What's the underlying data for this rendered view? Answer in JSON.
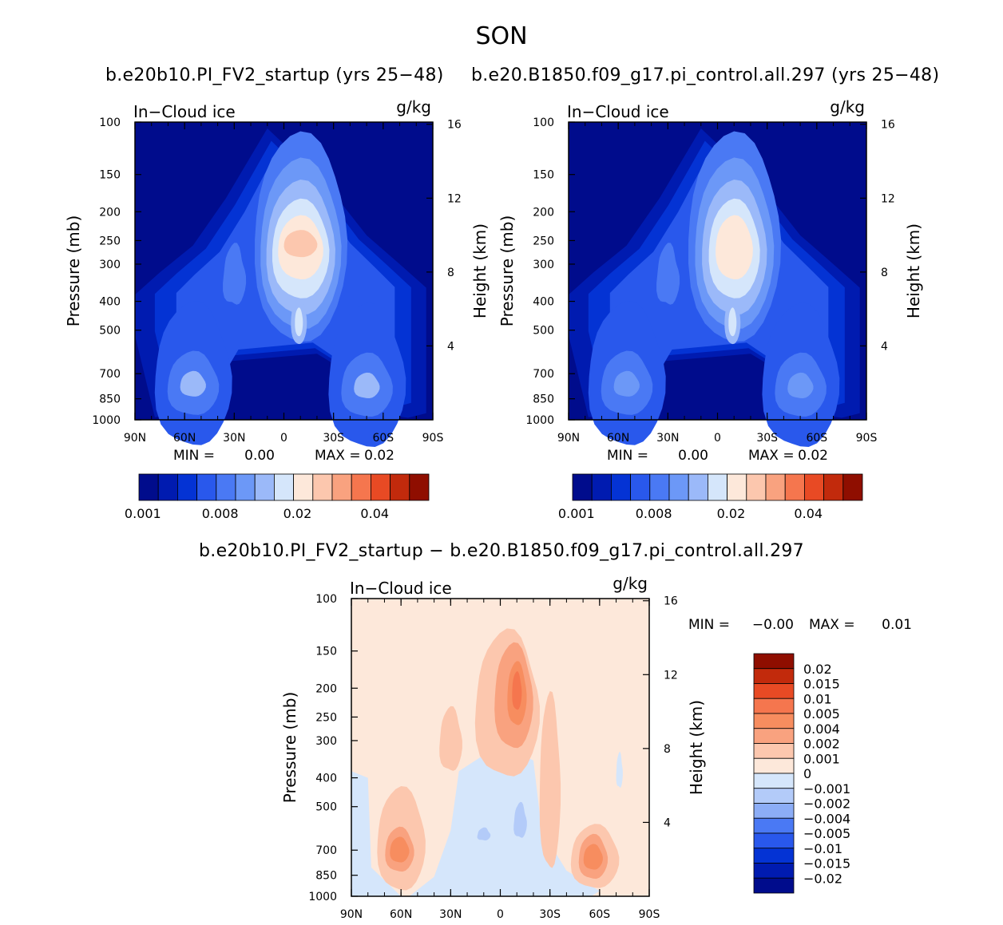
{
  "figure_title": "SON",
  "top_left_case": "b.e20b10.PI_FV2_startup (yrs 25−48)",
  "top_right_case": "b.e20.B1850.f09_g17.pi_control.all.297 (yrs 25−48)",
  "bottom_title": "b.e20b10.PI_FV2_startup − b.e20.B1850.f09_g17.pi_control.all.297",
  "chart_data": [
    {
      "type": "heatmap",
      "panel": "case1",
      "title_left": "In−Cloud ice",
      "title_right": "g/kg",
      "xlabel": "",
      "ylabel": "Pressure (mb)",
      "ylabel_right": "Height (km)",
      "x_ticks": [
        "90N",
        "60N",
        "30N",
        "0",
        "30S",
        "60S",
        "90S"
      ],
      "y_ticks": [
        100,
        150,
        200,
        250,
        300,
        400,
        500,
        700,
        850,
        1000
      ],
      "y_ticks_right": [
        4,
        8,
        12,
        16
      ],
      "ylim": [
        1000,
        100
      ],
      "min_label": "MIN =",
      "min_value": "0.00",
      "max_label": "MAX =",
      "max_value": "0.02",
      "colorbar_labels": [
        "0.001",
        "0.008",
        "0.02",
        "0.04"
      ],
      "features": [
        {
          "lat": -10,
          "p": 250,
          "value": 0.02
        },
        {
          "lat": -10,
          "p": 550,
          "value": 0.008
        },
        {
          "lat": 55,
          "p": 750,
          "value": 0.008
        },
        {
          "lat": -50,
          "p": 760,
          "value": 0.008
        },
        {
          "lat": 30,
          "p": 300,
          "value": 0.005
        },
        {
          "lat": -25,
          "p": 300,
          "value": 0.005
        }
      ]
    },
    {
      "type": "heatmap",
      "panel": "case2",
      "title_left": "In−Cloud ice",
      "title_right": "g/kg",
      "xlabel": "",
      "ylabel": "Pressure (mb)",
      "ylabel_right": "Height (km)",
      "x_ticks": [
        "90N",
        "60N",
        "30N",
        "0",
        "30S",
        "60S",
        "90S"
      ],
      "y_ticks": [
        100,
        150,
        200,
        250,
        300,
        400,
        500,
        700,
        850,
        1000
      ],
      "y_ticks_right": [
        4,
        8,
        12,
        16
      ],
      "ylim": [
        1000,
        100
      ],
      "min_label": "MIN =",
      "min_value": "0.00",
      "max_label": "MAX =",
      "max_value": "0.02",
      "colorbar_labels": [
        "0.001",
        "0.008",
        "0.02",
        "0.04"
      ],
      "features": [
        {
          "lat": -10,
          "p": 250,
          "value": 0.015
        },
        {
          "lat": -10,
          "p": 550,
          "value": 0.006
        },
        {
          "lat": 55,
          "p": 750,
          "value": 0.005
        },
        {
          "lat": -50,
          "p": 760,
          "value": 0.005
        }
      ]
    },
    {
      "type": "heatmap",
      "panel": "difference",
      "title_left": "In−Cloud ice",
      "title_right": "g/kg",
      "xlabel": "",
      "ylabel": "Pressure (mb)",
      "ylabel_right": "Height (km)",
      "x_ticks": [
        "90N",
        "60N",
        "30N",
        "0",
        "30S",
        "60S",
        "90S"
      ],
      "y_ticks": [
        100,
        150,
        200,
        250,
        300,
        400,
        500,
        700,
        850,
        1000
      ],
      "y_ticks_right": [
        4,
        8,
        12,
        16
      ],
      "ylim": [
        1000,
        100
      ],
      "min_label": "MIN =",
      "min_value": "−0.00",
      "max_label": "MAX =",
      "max_value": "0.01",
      "colorbar_labels": [
        "0.02",
        "0.015",
        "0.01",
        "0.005",
        "0.004",
        "0.002",
        "0.001",
        "0",
        "−0.001",
        "−0.002",
        "−0.004",
        "−0.005",
        "−0.01",
        "−0.015",
        "−0.02"
      ],
      "features": [
        {
          "lat": -10,
          "p": 210,
          "value": 0.005
        },
        {
          "lat": 60,
          "p": 720,
          "value": 0.002
        },
        {
          "lat": -55,
          "p": 740,
          "value": 0.002
        },
        {
          "lat": 0,
          "p": 600,
          "value": -0.002
        }
      ]
    }
  ],
  "colors": {
    "seq": [
      "#000c8c",
      "#001bb0",
      "#0433d4",
      "#2958ec",
      "#4a79f4",
      "#6c98f7",
      "#9bb9f9",
      "#d5e6fb",
      "#fde8da",
      "#fcc7ae",
      "#f9a27f",
      "#f5764e",
      "#e84a24",
      "#c22a0c",
      "#8f0e00"
    ],
    "diff": [
      "#8f0e00",
      "#c22a0c",
      "#e84a24",
      "#f5764e",
      "#f78d5f",
      "#f9a27f",
      "#fcc7ae",
      "#fde8da",
      "#d5e6fb",
      "#b3cbf9",
      "#8cadf6",
      "#6c98f7",
      "#4a79f4",
      "#2958ec",
      "#0433d4",
      "#001bb0",
      "#000c8c"
    ]
  }
}
